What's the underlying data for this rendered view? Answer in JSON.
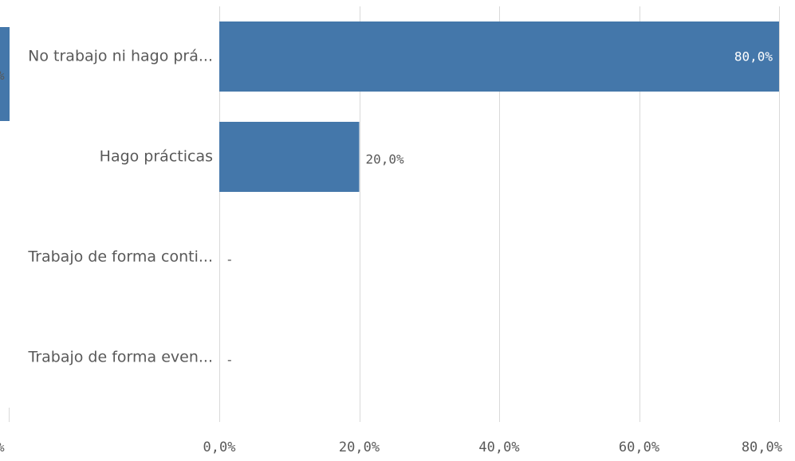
{
  "chart_data": {
    "type": "bar",
    "orientation": "horizontal",
    "categories": [
      "No trabajo ni hago prá...",
      "Hago prácticas",
      "Trabajo de forma conti...",
      "Trabajo de forma even..."
    ],
    "values": [
      80.0,
      20.0,
      null,
      null
    ],
    "value_labels": [
      "80,0%",
      "20,0%",
      "-",
      "-"
    ],
    "xlim": [
      0,
      80
    ],
    "xticks": [
      0,
      20,
      40,
      60,
      80
    ],
    "xtick_labels": [
      "0,0%",
      "20,0%",
      "40,0%",
      "60,0%",
      "80,0%"
    ],
    "grid": true,
    "colors": {
      "bar": "#4477aa",
      "grid": "#d9d9d9",
      "text": "#595959",
      "label_inside": "#ffffff"
    }
  },
  "left_clip": {
    "bar_label_fragment": "%",
    "tick_label_fragment": "%"
  }
}
